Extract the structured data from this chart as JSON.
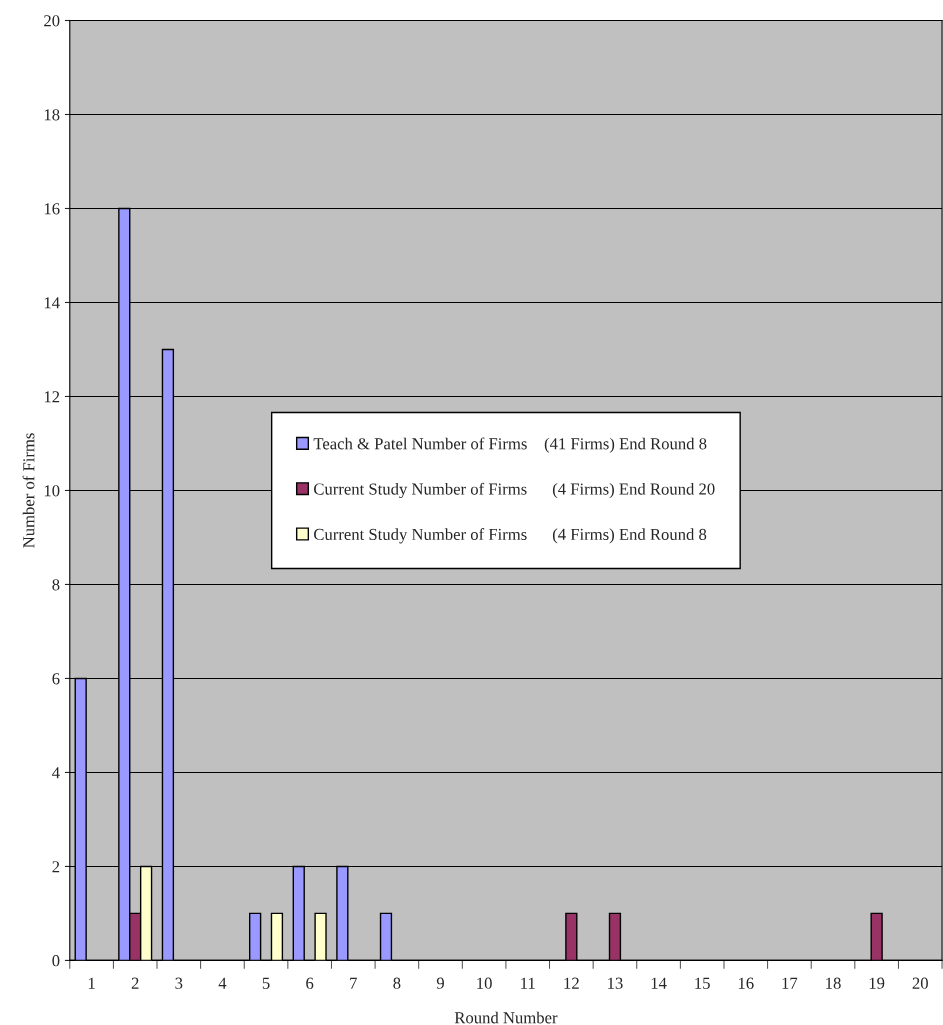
{
  "chart_data": {
    "type": "bar",
    "xlabel": "Round Number",
    "ylabel": "Number of Firms",
    "categories": [
      "1",
      "2",
      "3",
      "4",
      "5",
      "6",
      "7",
      "8",
      "9",
      "10",
      "11",
      "12",
      "13",
      "14",
      "15",
      "16",
      "17",
      "18",
      "19",
      "20"
    ],
    "series": [
      {
        "name": "Teach & Patel Number of Firms    (41 Firms) End Round 8",
        "color": "#9999ff",
        "values": [
          6,
          16,
          13,
          null,
          1,
          2,
          2,
          1,
          null,
          null,
          null,
          null,
          null,
          null,
          null,
          null,
          null,
          null,
          null,
          null
        ]
      },
      {
        "name": "Current Study Number of Firms      (4 Firms) End Round 20",
        "color": "#993366",
        "values": [
          null,
          1,
          null,
          null,
          null,
          null,
          null,
          null,
          null,
          null,
          null,
          1,
          1,
          null,
          null,
          null,
          null,
          null,
          1,
          null
        ]
      },
      {
        "name": "Current Study Number of Firms      (4 Firms) End Round 8",
        "color": "#ffffcc",
        "values": [
          null,
          2,
          null,
          null,
          1,
          1,
          null,
          null,
          null,
          null,
          null,
          null,
          null,
          null,
          null,
          null,
          null,
          null,
          null,
          null
        ]
      }
    ],
    "ylim": [
      0,
      20
    ],
    "yticks": [
      0,
      2,
      4,
      6,
      8,
      10,
      12,
      14,
      16,
      18,
      20
    ],
    "grid": "y",
    "legend": "center"
  }
}
